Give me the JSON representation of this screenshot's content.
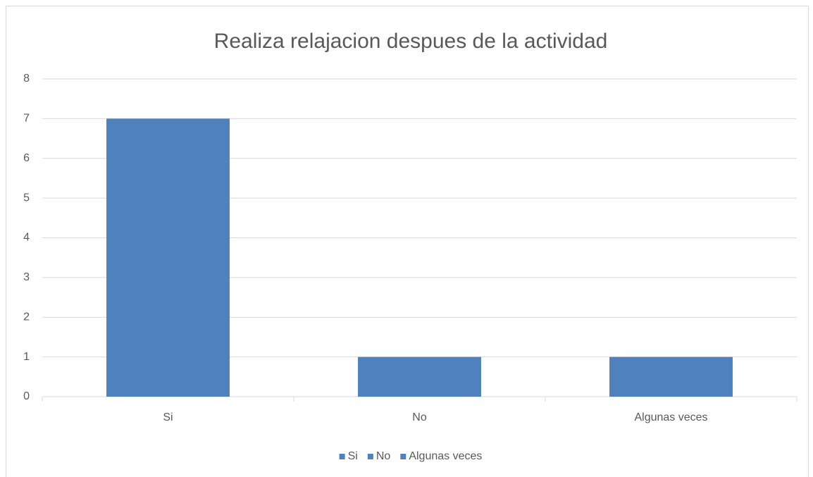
{
  "chart_data": {
    "type": "bar",
    "title": "Realiza relajacion despues de la actividad",
    "categories": [
      "Si",
      "No",
      "Algunas veces"
    ],
    "values": [
      7,
      1,
      1
    ],
    "color": "#4f81bd",
    "ylim": [
      0,
      8
    ],
    "yticks": [
      0,
      1,
      2,
      3,
      4,
      5,
      6,
      7,
      8
    ],
    "grid": true,
    "legend": "bottom"
  }
}
